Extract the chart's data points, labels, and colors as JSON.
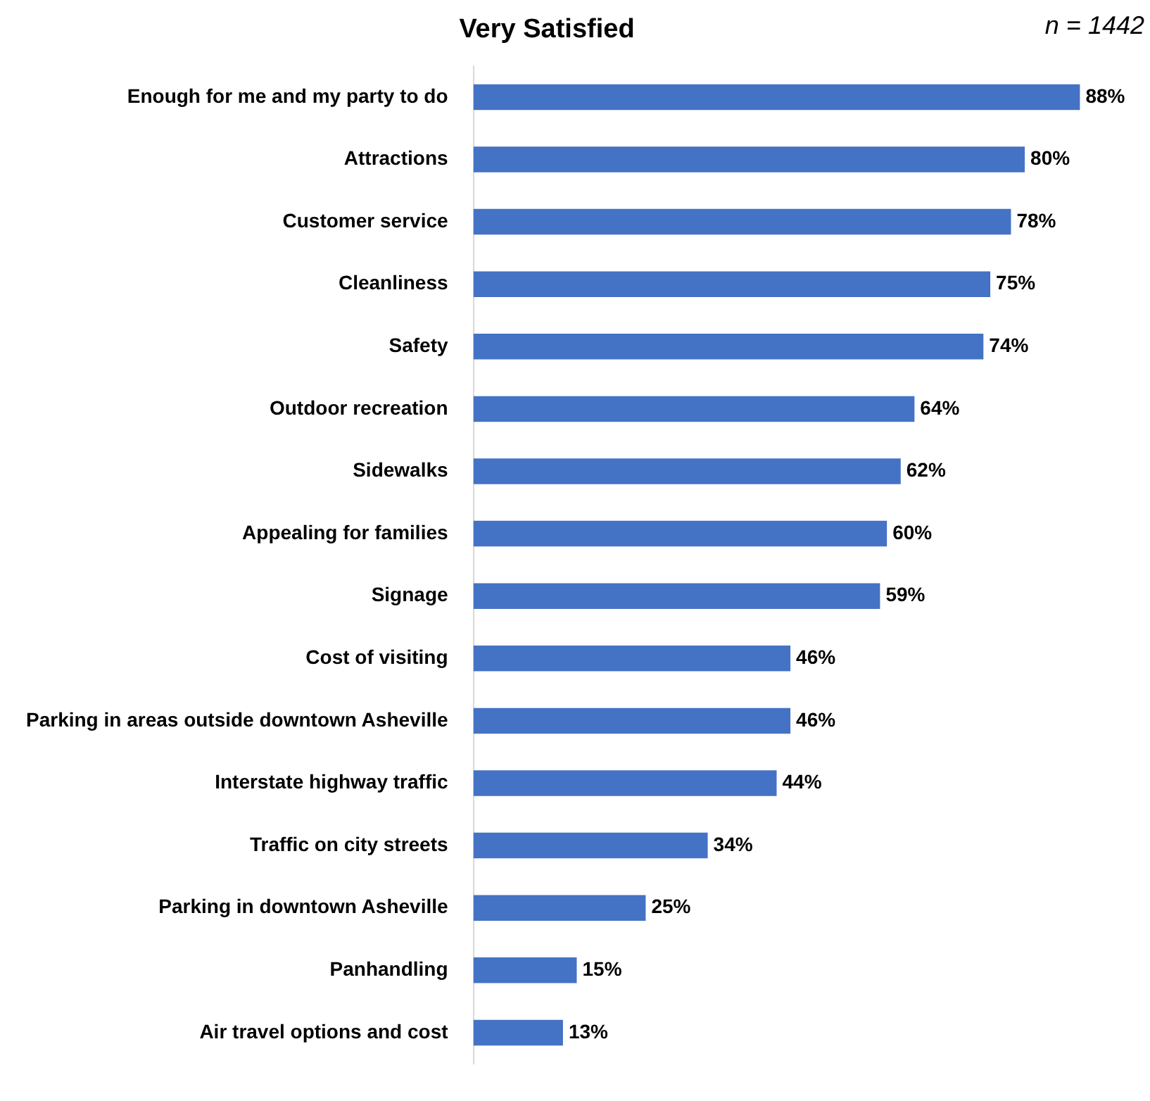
{
  "chart_data": {
    "type": "bar",
    "orientation": "horizontal",
    "title": "Very Satisfied",
    "annotations": [
      "n = 1442"
    ],
    "categories": [
      "Enough for me and my party to do",
      "Attractions",
      "Customer service",
      "Cleanliness",
      "Safety",
      "Outdoor recreation",
      "Sidewalks",
      "Appealing for families",
      "Signage",
      "Cost of visiting",
      "Parking in areas outside downtown Asheville",
      "Interstate highway traffic",
      "Traffic on city streets",
      "Parking in downtown Asheville",
      "Panhandling",
      "Air travel options and cost"
    ],
    "values": [
      88,
      80,
      78,
      75,
      74,
      64,
      62,
      60,
      59,
      46,
      46,
      44,
      34,
      25,
      15,
      13
    ],
    "value_labels": [
      "88%",
      "80%",
      "78%",
      "75%",
      "74%",
      "64%",
      "62%",
      "60%",
      "59%",
      "46%",
      "46%",
      "44%",
      "34%",
      "25%",
      "15%",
      "13%"
    ],
    "color": "#4472c4",
    "grid": false,
    "legend": false,
    "tick_labels": "y"
  }
}
